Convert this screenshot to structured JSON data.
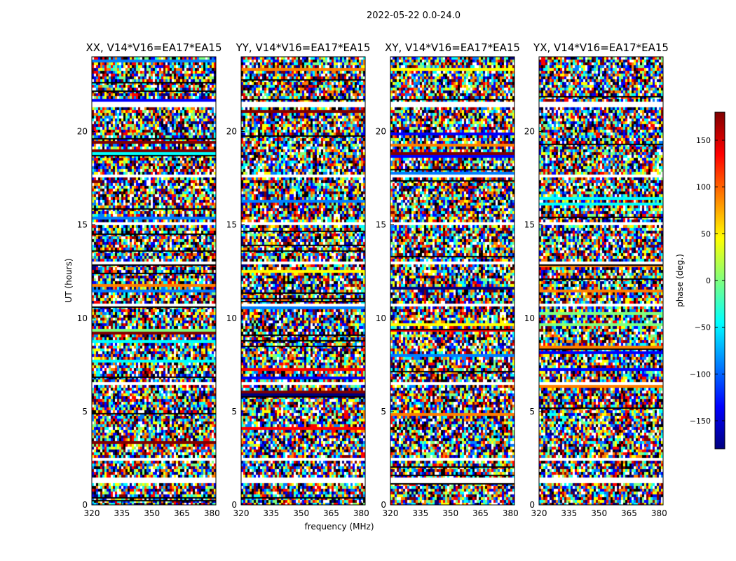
{
  "chart_data": {
    "type": "heatmap",
    "title": "2022-05-22 0.0-24.0",
    "panels": [
      {
        "title": "XX, V14*V16=EA17*EA15"
      },
      {
        "title": "YY, V14*V16=EA17*EA15"
      },
      {
        "title": "XY, V14*V16=EA17*EA15"
      },
      {
        "title": "YX, V14*V16=EA17*EA15"
      }
    ],
    "xlabel": "frequency (MHz)",
    "ylabel": "UT (hours)",
    "xlim": [
      320,
      382
    ],
    "ylim": [
      0,
      24
    ],
    "xticks": [
      "320",
      "335",
      "350",
      "365",
      "380"
    ],
    "yticks": [
      "0",
      "5",
      "10",
      "15",
      "20"
    ],
    "colorbar": {
      "label": "phase (deg.)",
      "range": [
        -180,
        180
      ],
      "ticks": [
        "150",
        "100",
        "50",
        "0",
        "−50",
        "−100",
        "−150"
      ],
      "tick_values": [
        150,
        100,
        50,
        0,
        -50,
        -100,
        -150
      ],
      "colormap": [
        "#00007f",
        "#0000ff",
        "#007fff",
        "#00ffff",
        "#7fff7f",
        "#ffff00",
        "#ff7f00",
        "#ff0000",
        "#7f0000"
      ]
    },
    "gaps_hours": [
      [
        1.3,
        1.5
      ],
      [
        2.4,
        2.6
      ],
      [
        6.5,
        6.6
      ],
      [
        10.7,
        10.85
      ],
      [
        12.9,
        13.1
      ],
      [
        15.1,
        15.2
      ],
      [
        17.6,
        17.7
      ],
      [
        21.4,
        21.6
      ]
    ]
  }
}
